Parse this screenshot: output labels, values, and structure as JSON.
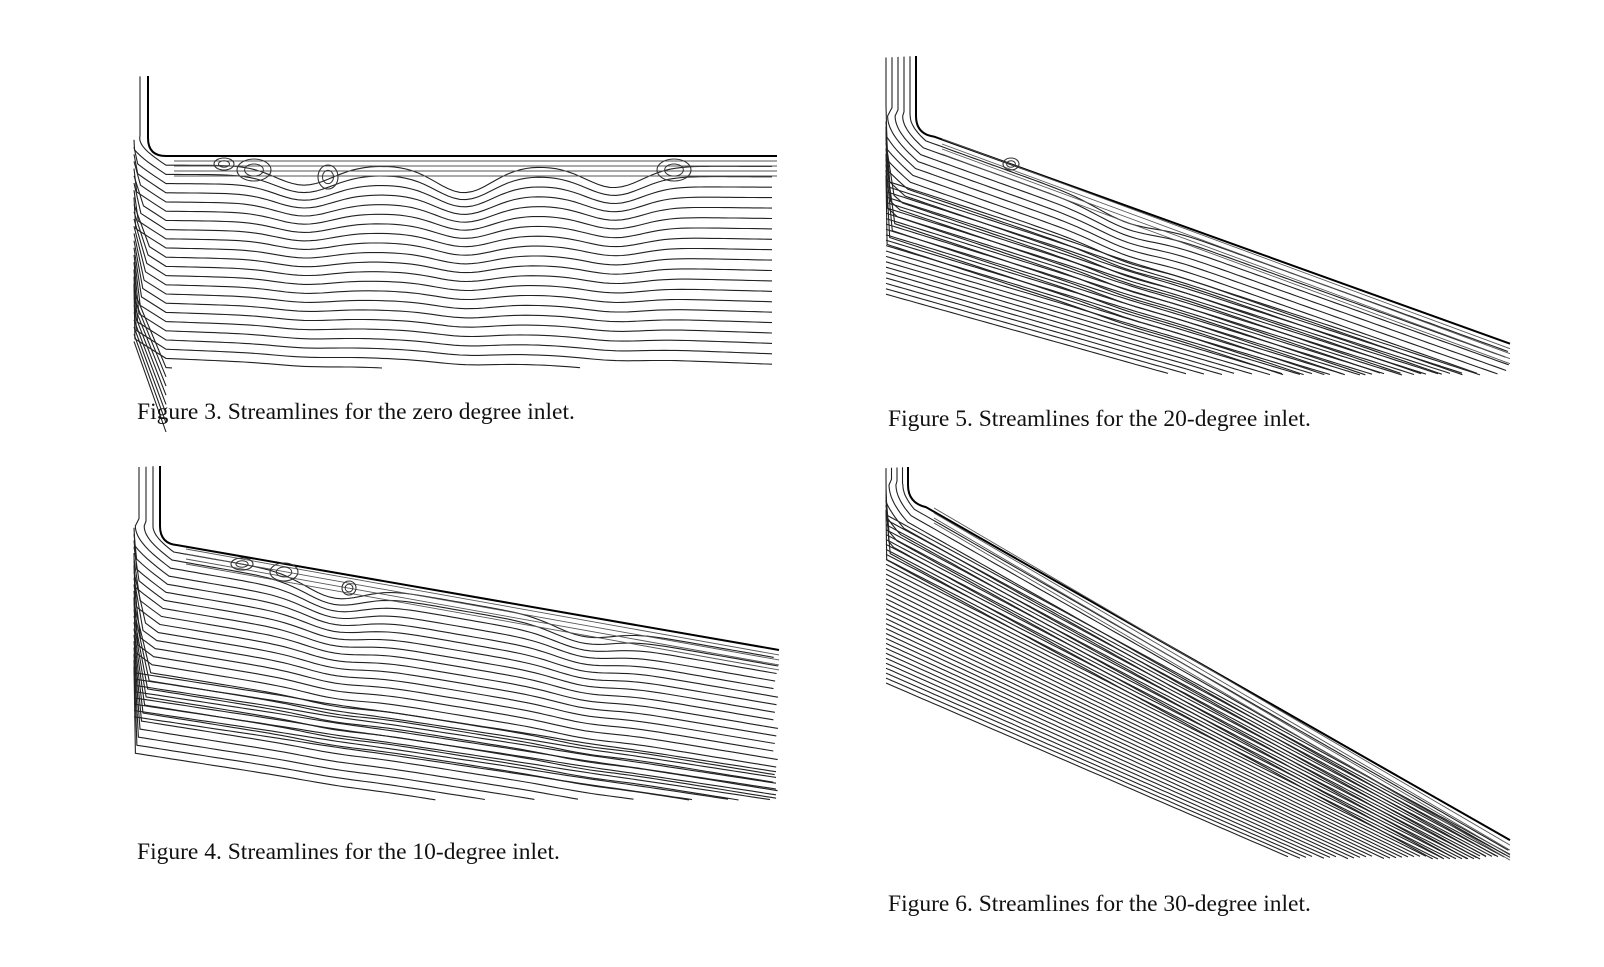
{
  "figures": [
    {
      "id": "fig3",
      "caption": "Figure 3.  Streamlines for the zero degree inlet.",
      "inlet_angle_deg": 0,
      "streamline_color": "#222222"
    },
    {
      "id": "fig4",
      "caption": "Figure 4. Streamlines for the 10-degree inlet.",
      "inlet_angle_deg": 10,
      "streamline_color": "#222222"
    },
    {
      "id": "fig5",
      "caption": "Figure 5. Streamlines for the 20-degree inlet.",
      "inlet_angle_deg": 20,
      "streamline_color": "#222222"
    },
    {
      "id": "fig6",
      "caption": "Figure 6. Streamlines for the 30-degree inlet.",
      "inlet_angle_deg": 30,
      "streamline_color": "#222222"
    }
  ]
}
